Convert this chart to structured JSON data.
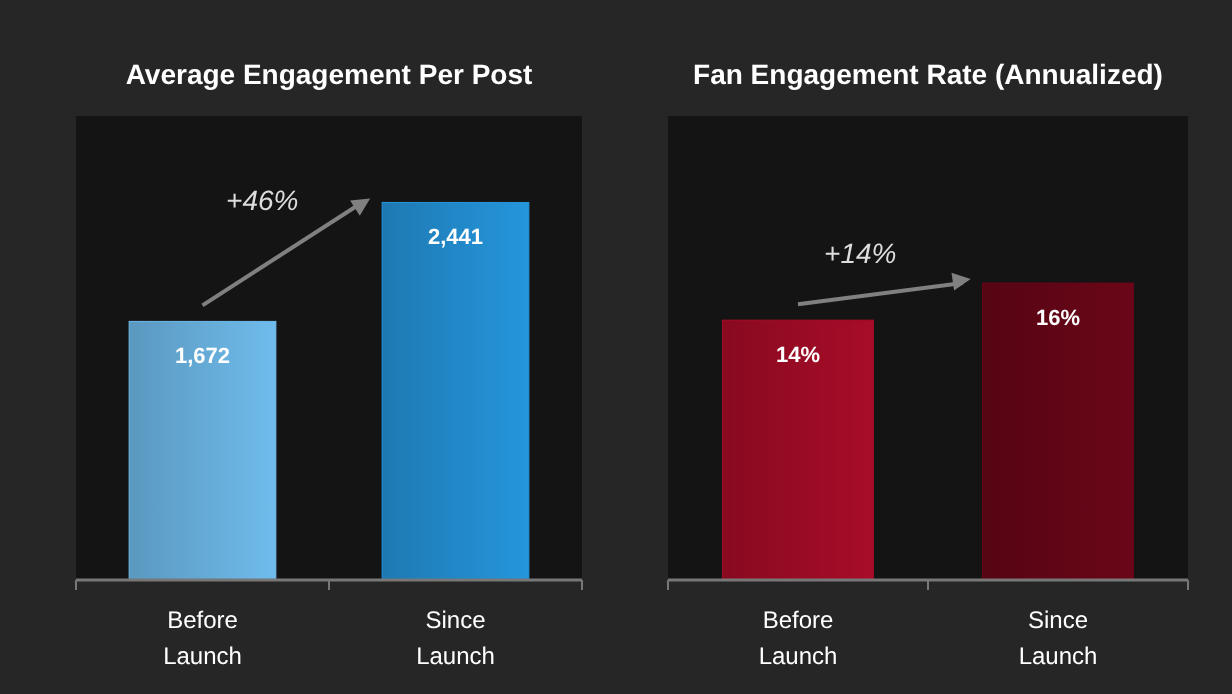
{
  "chart_data": [
    {
      "type": "bar",
      "title": "Average Engagement Per Post",
      "categories": [
        "Before Launch",
        "Since Launch"
      ],
      "values": [
        1672,
        2441
      ],
      "colors": [
        "#6fbcec",
        "#2596dc"
      ],
      "value_labels": [
        "1,672",
        "2,441"
      ],
      "ylim": [
        0,
        3000
      ],
      "annotations": [
        "+46%"
      ],
      "tick_labels": "x"
    },
    {
      "type": "bar",
      "title": "Fan Engagement Rate (Annualized)",
      "categories": [
        "Before Launch",
        "Since Launch"
      ],
      "values": [
        14,
        16
      ],
      "colors": [
        "#a80c28",
        "#6a0618"
      ],
      "value_labels": [
        "14%",
        "16%"
      ],
      "ylim": [
        0,
        25
      ],
      "annotations": [
        "+14%"
      ],
      "tick_labels": "x"
    }
  ]
}
